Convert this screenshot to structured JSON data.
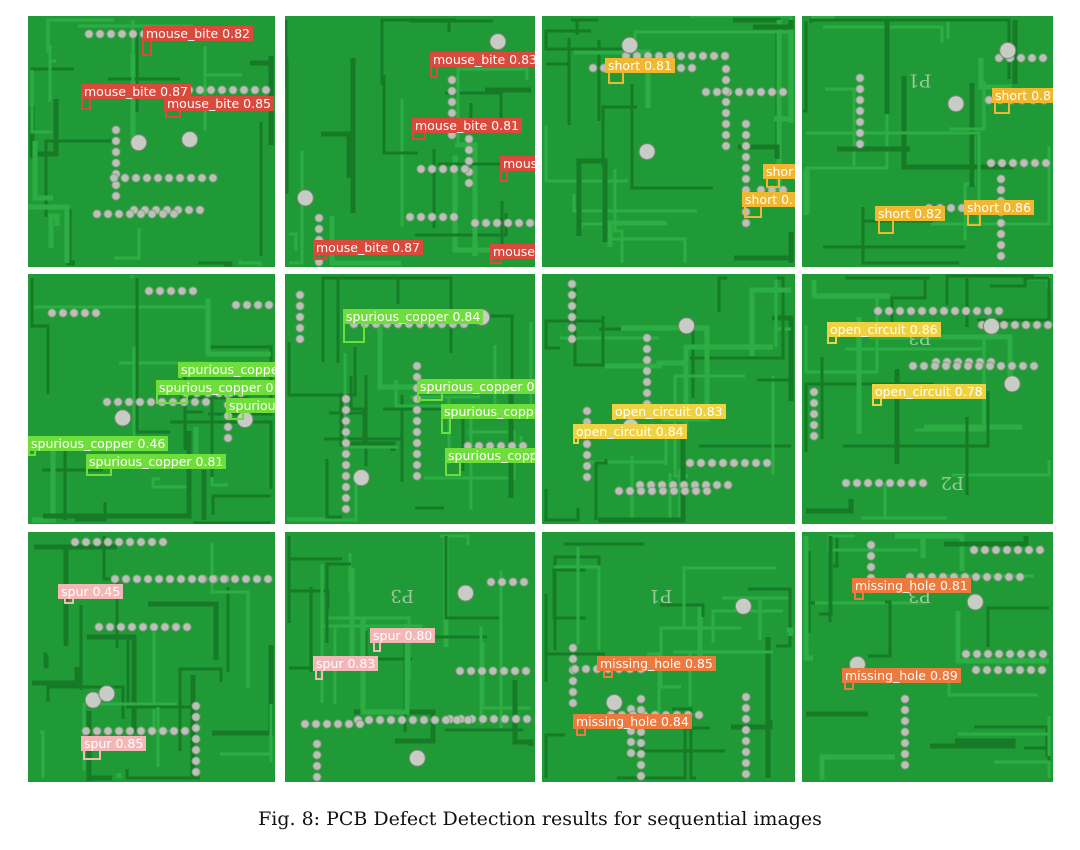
{
  "figure": {
    "caption": "Fig. 8: PCB Defect Detection results for sequential images"
  },
  "class_colors": {
    "mouse_bite": "#d94a3c",
    "short": "#f0b832",
    "spurious_copper": "#6fde3c",
    "open_circuit": "#efd244",
    "spur": "#f2b8b8",
    "missing_hole": "#ec7a3e"
  },
  "board_color": "#1f9a36",
  "tiles": [
    {
      "label_tile": "row1-col1",
      "detections": [
        {
          "cls": "mouse_bite",
          "label": "mouse_bite 0.82"
        },
        {
          "cls": "mouse_bite",
          "label": "mouse_bite 0.87"
        },
        {
          "cls": "mouse_bite",
          "label": "mouse_bite 0.85"
        }
      ]
    },
    {
      "label_tile": "row1-col2",
      "detections": [
        {
          "cls": "mouse_bite",
          "label": "mouse_bite 0.83"
        },
        {
          "cls": "mouse_bite",
          "label": "mouse_bite 0.81"
        },
        {
          "cls": "mouse_bite",
          "label": "mouse"
        },
        {
          "cls": "mouse_bite",
          "label": "mouse_bite 0.87"
        },
        {
          "cls": "mouse_bite",
          "label": "mouse"
        }
      ]
    },
    {
      "label_tile": "row1-col3",
      "detections": [
        {
          "cls": "short",
          "label": "short 0.81"
        },
        {
          "cls": "short",
          "label": "shor"
        },
        {
          "cls": "short",
          "label": "short 0."
        }
      ]
    },
    {
      "label_tile": "row1-col4",
      "silkscreen": "P1",
      "detections": [
        {
          "cls": "short",
          "label": "short 0.8"
        },
        {
          "cls": "short",
          "label": "short 0.82"
        },
        {
          "cls": "short",
          "label": "short 0.86"
        }
      ]
    },
    {
      "label_tile": "row2-col1",
      "detections": [
        {
          "cls": "spurious_copper",
          "label": "spurious_coppe"
        },
        {
          "cls": "spurious_copper",
          "label": "spurious_copper 0"
        },
        {
          "cls": "spurious_copper",
          "label": "spurious"
        },
        {
          "cls": "spurious_copper",
          "label": "spurious_copper 0.46"
        },
        {
          "cls": "spurious_copper",
          "label": "spurious_copper 0.81"
        }
      ]
    },
    {
      "label_tile": "row2-col2",
      "detections": [
        {
          "cls": "spurious_copper",
          "label": "spurious_copper 0.84"
        },
        {
          "cls": "spurious_copper",
          "label": "spurious_copper 0"
        },
        {
          "cls": "spurious_copper",
          "label": "spurious_copp"
        },
        {
          "cls": "spurious_copper",
          "label": "spurious_copp"
        }
      ]
    },
    {
      "label_tile": "row2-col3",
      "detections": [
        {
          "cls": "open_circuit",
          "label": "open_circuit 0.83"
        },
        {
          "cls": "open_circuit",
          "label": "open_circuit 0.84"
        }
      ]
    },
    {
      "label_tile": "row2-col4",
      "silkscreen": "P3",
      "silkscreen2": "P2",
      "detections": [
        {
          "cls": "open_circuit",
          "label": "open_circuit 0.86"
        },
        {
          "cls": "open_circuit",
          "label": "open_circuit 0.78"
        }
      ]
    },
    {
      "label_tile": "row3-col1",
      "detections": [
        {
          "cls": "spur",
          "label": "spur 0.45"
        },
        {
          "cls": "spur",
          "label": "spur 0.85"
        }
      ]
    },
    {
      "label_tile": "row3-col2",
      "silkscreen": "P3",
      "detections": [
        {
          "cls": "spur",
          "label": "spur 0.80"
        },
        {
          "cls": "spur",
          "label": "spur 0.83"
        }
      ]
    },
    {
      "label_tile": "row3-col3",
      "silkscreen": "P1",
      "detections": [
        {
          "cls": "missing_hole",
          "label": "missing_hole 0.85"
        },
        {
          "cls": "missing_hole",
          "label": "missing_hole 0.84"
        }
      ]
    },
    {
      "label_tile": "row3-col4",
      "silkscreen": "P3",
      "detections": [
        {
          "cls": "missing_hole",
          "label": "missing_hole 0.81"
        },
        {
          "cls": "missing_hole",
          "label": "missing_hole 0.89"
        }
      ]
    }
  ]
}
